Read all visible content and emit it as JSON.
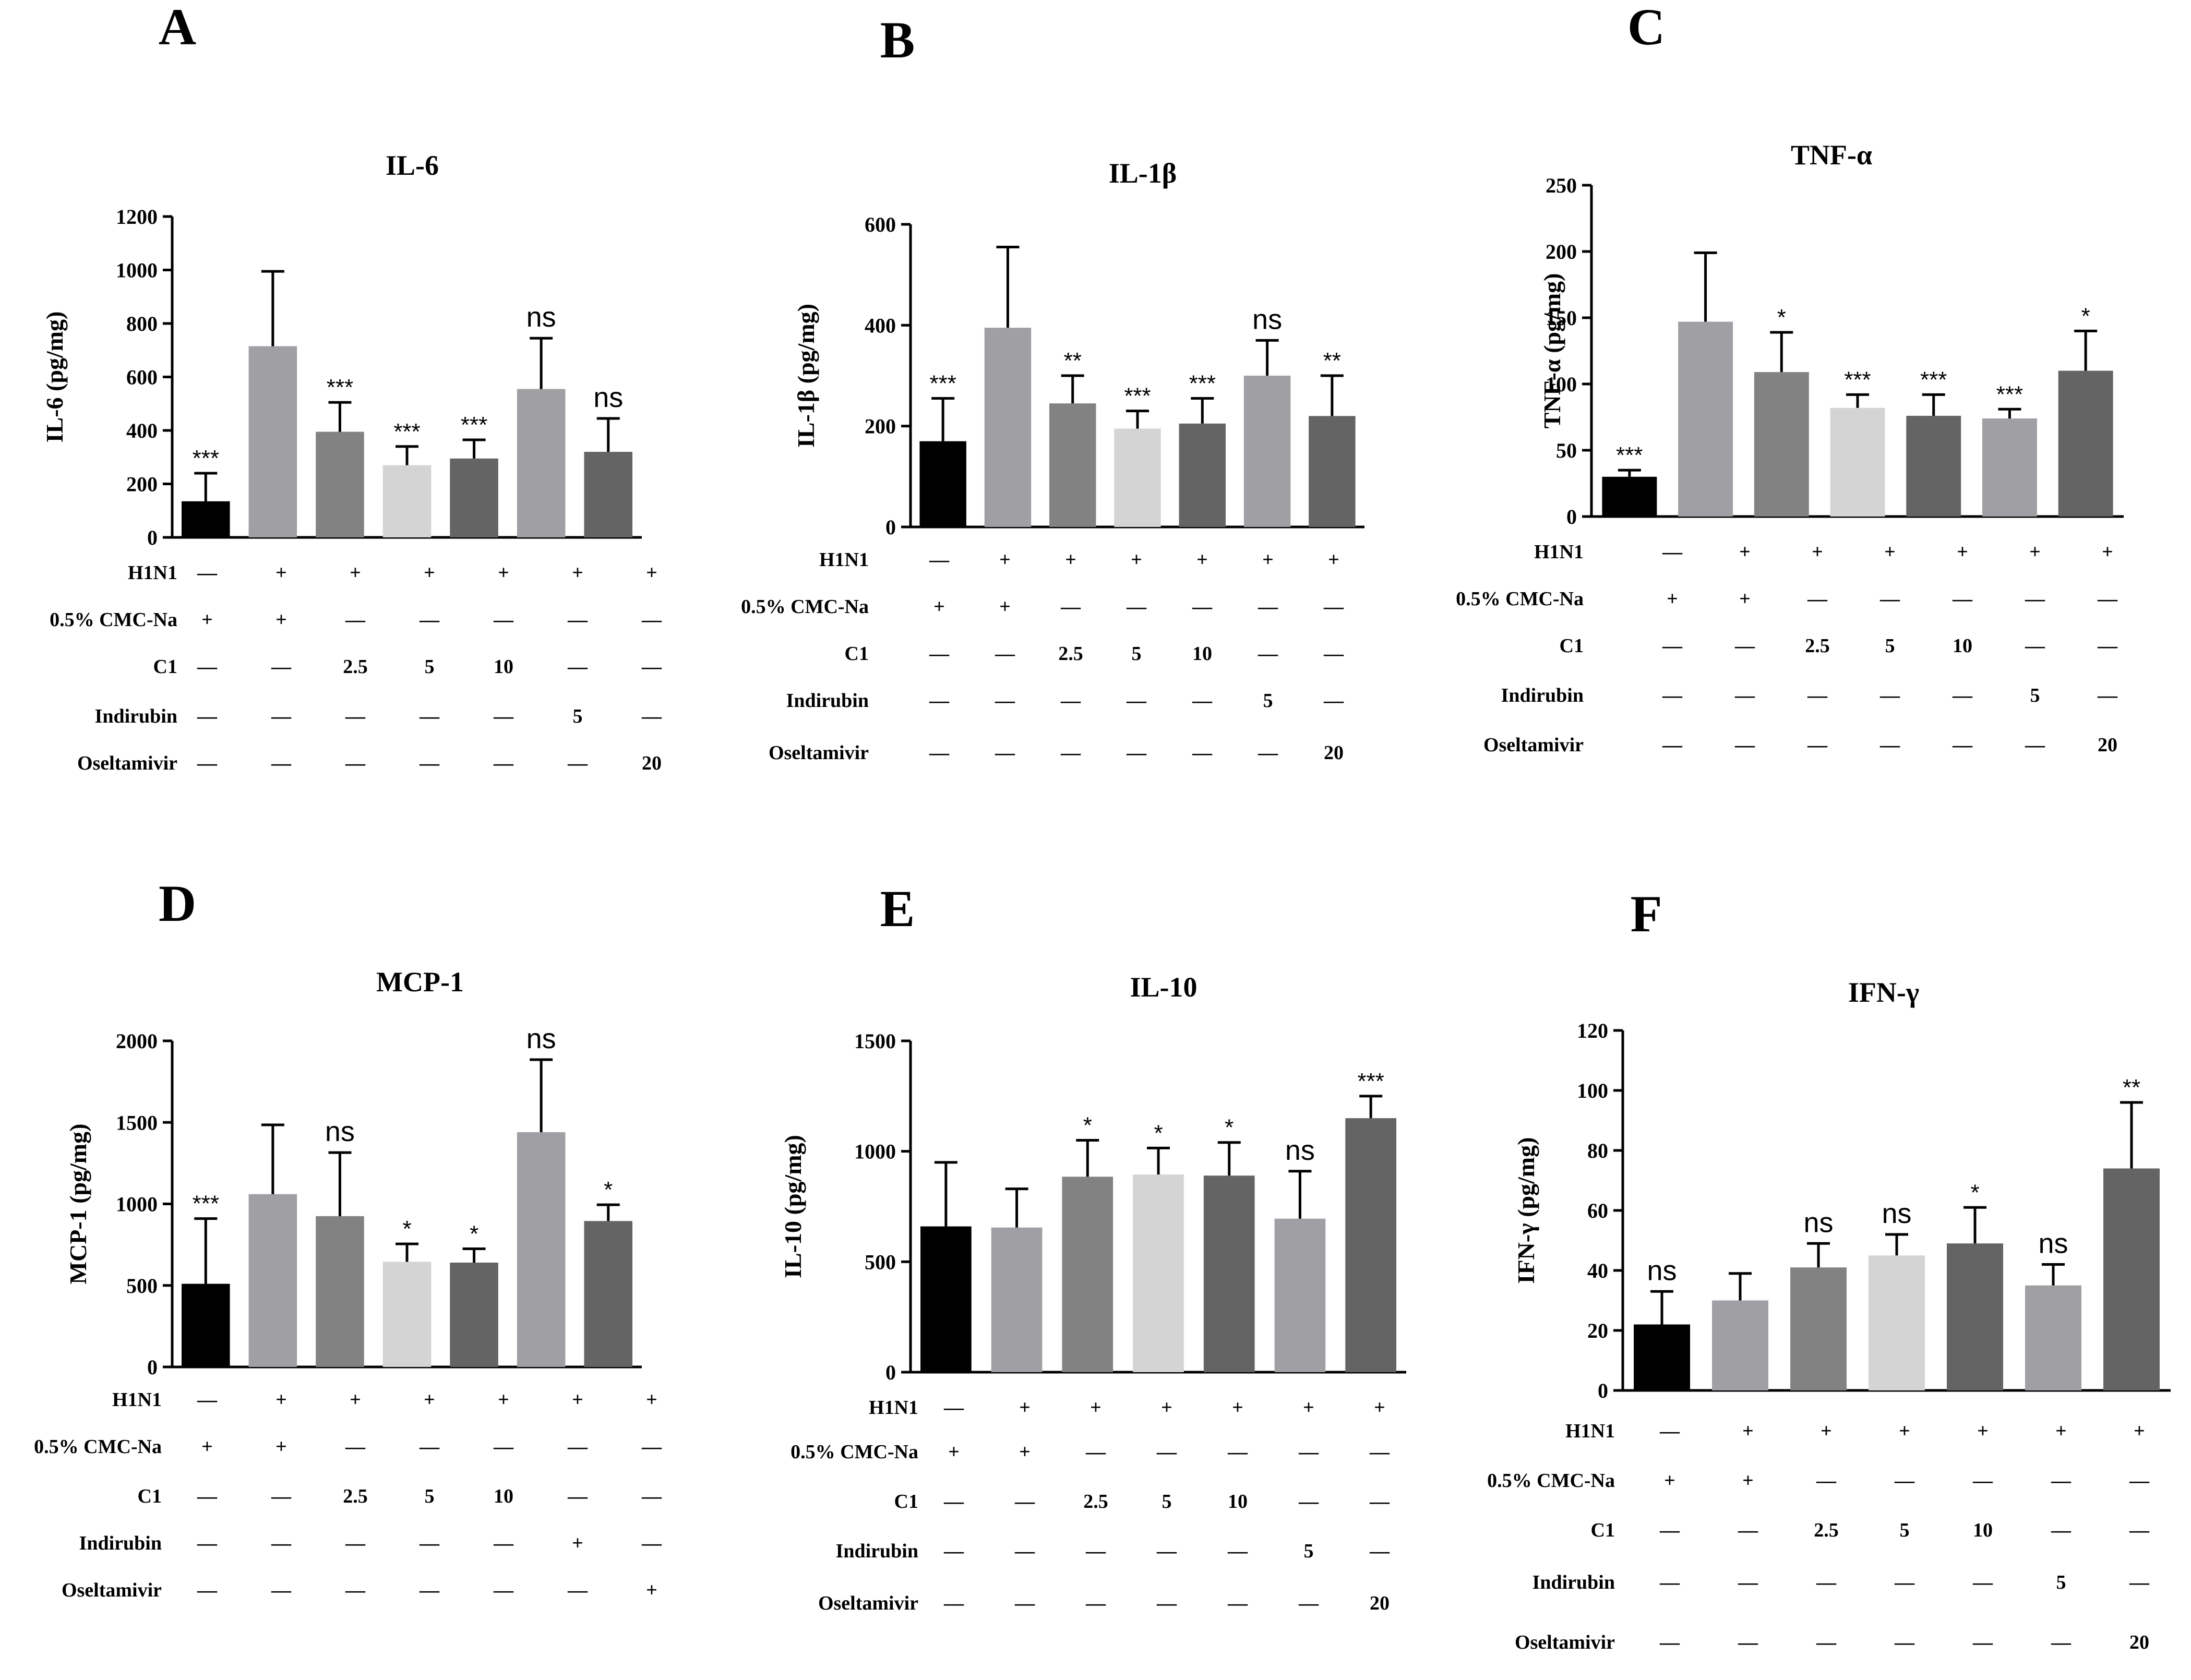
{
  "chart_data": [
    {
      "type": "bar",
      "panel": "A",
      "title": "IL-6",
      "ylabel": "IL-6 (pg/mg)",
      "ylim": [
        0,
        1200
      ],
      "yticks": [
        0,
        200,
        400,
        600,
        800,
        1000,
        1200
      ],
      "values": [
        135,
        715,
        395,
        270,
        295,
        555,
        320
      ],
      "errors": [
        105,
        280,
        110,
        70,
        70,
        190,
        125
      ],
      "significance": [
        "***",
        "",
        "***",
        "***",
        "***",
        "ns",
        "ns"
      ],
      "colors": [
        "#000000",
        "#a0a0a4",
        "#828282",
        "#d4d4d4",
        "#646464",
        "#a0a0a4",
        "#646464"
      ],
      "table": {
        "rows": [
          "H1N1",
          "0.5% CMC-Na",
          "C1",
          "Indirubin",
          "Oseltamivir"
        ],
        "cells": [
          [
            "—",
            "+",
            "+",
            "+",
            "+",
            "+",
            "+"
          ],
          [
            "+",
            "+",
            "—",
            "—",
            "—",
            "—",
            "—"
          ],
          [
            "—",
            "—",
            "2.5",
            "5",
            "10",
            "—",
            "—"
          ],
          [
            "—",
            "—",
            "—",
            "—",
            "—",
            "5",
            "—"
          ],
          [
            "—",
            "—",
            "—",
            "—",
            "—",
            "—",
            "20"
          ]
        ]
      }
    },
    {
      "type": "bar",
      "panel": "B",
      "title": "IL-1β",
      "ylabel": "IL-1β (pg/mg)",
      "ylim": [
        0,
        600
      ],
      "yticks": [
        0,
        200,
        400,
        600
      ],
      "values": [
        170,
        395,
        245,
        195,
        205,
        300,
        220
      ],
      "errors": [
        85,
        160,
        55,
        35,
        50,
        70,
        80
      ],
      "significance": [
        "***",
        "",
        "**",
        "***",
        "***",
        "ns",
        "**"
      ],
      "colors": [
        "#000000",
        "#a0a0a4",
        "#828282",
        "#d4d4d4",
        "#646464",
        "#a0a0a4",
        "#646464"
      ],
      "table": {
        "rows": [
          "H1N1",
          "0.5% CMC-Na",
          "C1",
          "Indirubin",
          "Oseltamivir"
        ],
        "cells": [
          [
            "—",
            "+",
            "+",
            "+",
            "+",
            "+",
            "+"
          ],
          [
            "+",
            "+",
            "—",
            "—",
            "—",
            "—",
            "—"
          ],
          [
            "—",
            "—",
            "2.5",
            "5",
            "10",
            "—",
            "—"
          ],
          [
            "—",
            "—",
            "—",
            "—",
            "—",
            "5",
            "—"
          ],
          [
            "—",
            "—",
            "—",
            "—",
            "—",
            "—",
            "20"
          ]
        ]
      }
    },
    {
      "type": "bar",
      "panel": "C",
      "title": "TNF-α",
      "ylabel": "TNF-α (pg/mg)",
      "ylim": [
        0,
        250
      ],
      "yticks": [
        0,
        50,
        100,
        150,
        200,
        250
      ],
      "values": [
        30,
        147,
        109,
        82,
        76,
        74,
        110
      ],
      "errors": [
        5,
        52,
        30,
        10,
        16,
        7,
        30
      ],
      "significance": [
        "***",
        "",
        "*",
        "***",
        "***",
        "***",
        "*"
      ],
      "colors": [
        "#000000",
        "#a0a0a4",
        "#828282",
        "#d4d4d4",
        "#646464",
        "#a0a0a4",
        "#646464"
      ],
      "table": {
        "rows": [
          "H1N1",
          "0.5% CMC-Na",
          "C1",
          "Indirubin",
          "Oseltamivir"
        ],
        "cells": [
          [
            "—",
            "+",
            "+",
            "+",
            "+",
            "+",
            "+"
          ],
          [
            "+",
            "+",
            "—",
            "—",
            "—",
            "—",
            "—"
          ],
          [
            "—",
            "—",
            "2.5",
            "5",
            "10",
            "—",
            "—"
          ],
          [
            "—",
            "—",
            "—",
            "—",
            "—",
            "5",
            "—"
          ],
          [
            "—",
            "—",
            "—",
            "—",
            "—",
            "—",
            "20"
          ]
        ]
      }
    },
    {
      "type": "bar",
      "panel": "D",
      "title": "MCP-1",
      "ylabel": "MCP-1 (pg/mg)",
      "ylim": [
        0,
        2000
      ],
      "yticks": [
        0,
        500,
        1000,
        1500,
        2000
      ],
      "values": [
        510,
        1060,
        925,
        645,
        640,
        1440,
        895
      ],
      "errors": [
        400,
        425,
        390,
        110,
        85,
        445,
        100
      ],
      "significance": [
        "***",
        "",
        "ns",
        "*",
        "*",
        "ns",
        "*"
      ],
      "colors": [
        "#000000",
        "#a0a0a4",
        "#828282",
        "#d4d4d4",
        "#646464",
        "#a0a0a4",
        "#646464"
      ],
      "table": {
        "rows": [
          "H1N1",
          "0.5% CMC-Na",
          "C1",
          "Indirubin",
          "Oseltamivir"
        ],
        "cells": [
          [
            "—",
            "+",
            "+",
            "+",
            "+",
            "+",
            "+"
          ],
          [
            "+",
            "+",
            "—",
            "—",
            "—",
            "—",
            "—"
          ],
          [
            "—",
            "—",
            "2.5",
            "5",
            "10",
            "—",
            "—"
          ],
          [
            "—",
            "—",
            "—",
            "—",
            "—",
            "+",
            "—"
          ],
          [
            "—",
            "—",
            "—",
            "—",
            "—",
            "—",
            "+"
          ]
        ]
      }
    },
    {
      "type": "bar",
      "panel": "E",
      "title": "IL-10",
      "ylabel": "IL-10 (pg/mg)",
      "ylim": [
        0,
        1500
      ],
      "yticks": [
        0,
        500,
        1000,
        1500
      ],
      "values": [
        660,
        655,
        885,
        895,
        890,
        695,
        1150
      ],
      "errors": [
        290,
        175,
        165,
        120,
        150,
        215,
        100
      ],
      "significance": [
        "",
        "",
        "*",
        "*",
        "*",
        "ns",
        "***"
      ],
      "colors": [
        "#000000",
        "#a0a0a4",
        "#828282",
        "#d4d4d4",
        "#646464",
        "#a0a0a4",
        "#646464"
      ],
      "table": {
        "rows": [
          "H1N1",
          "0.5% CMC-Na",
          "C1",
          "Indirubin",
          "Oseltamivir"
        ],
        "cells": [
          [
            "—",
            "+",
            "+",
            "+",
            "+",
            "+",
            "+"
          ],
          [
            "+",
            "+",
            "—",
            "—",
            "—",
            "—",
            "—"
          ],
          [
            "—",
            "—",
            "2.5",
            "5",
            "10",
            "—",
            "—"
          ],
          [
            "—",
            "—",
            "—",
            "—",
            "—",
            "5",
            "—"
          ],
          [
            "—",
            "—",
            "—",
            "—",
            "—",
            "—",
            "20"
          ]
        ]
      }
    },
    {
      "type": "bar",
      "panel": "F",
      "title": "IFN-γ",
      "ylabel": "IFN-γ (pg/mg)",
      "ylim": [
        0,
        120
      ],
      "yticks": [
        0,
        20,
        40,
        60,
        80,
        100,
        120
      ],
      "values": [
        22,
        30,
        41,
        45,
        49,
        35,
        74
      ],
      "errors": [
        11,
        9,
        8,
        7,
        12,
        7,
        22
      ],
      "significance": [
        "ns",
        "",
        "ns",
        "ns",
        "*",
        "ns",
        "**"
      ],
      "colors": [
        "#000000",
        "#a0a0a4",
        "#828282",
        "#d4d4d4",
        "#646464",
        "#a0a0a4",
        "#646464"
      ],
      "table": {
        "rows": [
          "H1N1",
          "0.5% CMC-Na",
          "C1",
          "Indirubin",
          "Oseltamivir"
        ],
        "cells": [
          [
            "—",
            "+",
            "+",
            "+",
            "+",
            "+",
            "+"
          ],
          [
            "+",
            "+",
            "—",
            "—",
            "—",
            "—",
            "—"
          ],
          [
            "—",
            "—",
            "2.5",
            "5",
            "10",
            "—",
            "—"
          ],
          [
            "—",
            "—",
            "—",
            "—",
            "—",
            "5",
            "—"
          ],
          [
            "—",
            "—",
            "—",
            "—",
            "—",
            "—",
            "20"
          ]
        ]
      }
    }
  ]
}
